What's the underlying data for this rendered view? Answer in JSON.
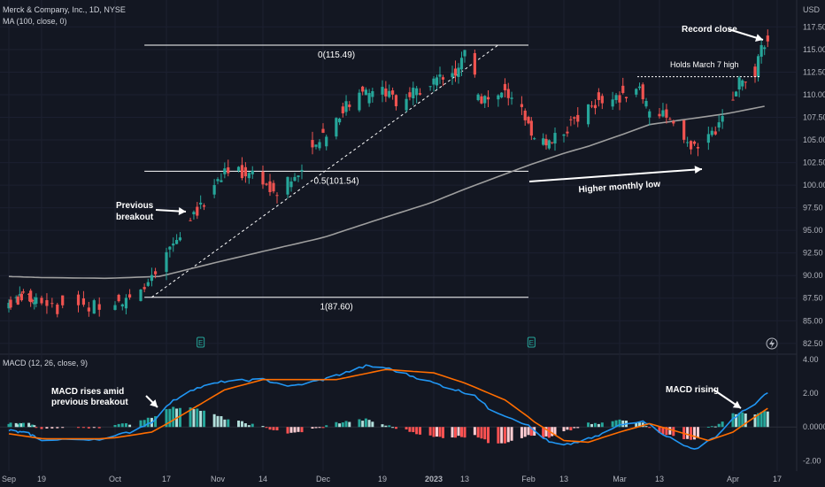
{
  "header": {
    "symbol_line": "Merck & Company, Inc., 1D, NYSE",
    "ma_line": "MA (100, close, 0)",
    "macd_line": "MACD (12, 26, close, 9)",
    "currency": "USD"
  },
  "colors": {
    "background": "#131722",
    "up": "#26a69a",
    "down": "#ef5350",
    "ma": "#9e9e9e",
    "macd": "#2196f3",
    "signal": "#ff6d00",
    "hist_up_strong": "#26a69a",
    "hist_up_weak": "#b2dfdb",
    "hist_down_strong": "#ff5252",
    "hist_down_weak": "#ffcdd2"
  },
  "icons": {
    "earnings_markers": [
      "earnings-e-icon",
      "earnings-e-icon"
    ],
    "lightning": "lightning-icon"
  },
  "chart_data": [
    {
      "type": "candlestick",
      "title": "Merck & Company, Inc., 1D, NYSE",
      "ylabel": "USD",
      "ylim": [
        81.5,
        119.5
      ],
      "y_ticks": [
        "117.50",
        "115.00",
        "112.50",
        "110.00",
        "107.50",
        "105.00",
        "102.50",
        "100.00",
        "97.50",
        "95.00",
        "92.50",
        "90.00",
        "87.50",
        "85.00",
        "82.50"
      ],
      "x_ticks": [
        "Sep",
        "19",
        "Oct",
        "17",
        "Nov",
        "14",
        "Dec",
        "19",
        "2023",
        "13",
        "Feb",
        "13",
        "Mar",
        "13",
        "Apr",
        "17"
      ],
      "x_tick_dates": [
        "2022-09-01",
        "2022-09-19",
        "2022-10-03",
        "2022-10-17",
        "2022-11-01",
        "2022-11-14",
        "2022-12-01",
        "2022-12-19",
        "2023-01-03",
        "2023-01-13",
        "2023-02-01",
        "2023-02-13",
        "2023-03-01",
        "2023-03-13",
        "2023-04-03",
        "2023-04-17"
      ],
      "close_anchors": [
        [
          "2022-09-01",
          87.0
        ],
        [
          "2022-09-12",
          87.6
        ],
        [
          "2022-09-20",
          86.3
        ],
        [
          "2022-09-30",
          86.8
        ],
        [
          "2022-10-07",
          87.8
        ],
        [
          "2022-10-13",
          89.5
        ],
        [
          "2022-10-18",
          93.0
        ],
        [
          "2022-10-24",
          95.8
        ],
        [
          "2022-10-28",
          98.2
        ],
        [
          "2022-11-03",
          101.8
        ],
        [
          "2022-11-08",
          101.3
        ],
        [
          "2022-11-14",
          100.6
        ],
        [
          "2022-11-17",
          98.8
        ],
        [
          "2022-11-23",
          101.3
        ],
        [
          "2022-11-30",
          104.6
        ],
        [
          "2022-12-07",
          108.5
        ],
        [
          "2022-12-14",
          110.2
        ],
        [
          "2022-12-19",
          110.5
        ],
        [
          "2022-12-23",
          109.3
        ],
        [
          "2023-01-03",
          111.5
        ],
        [
          "2023-01-10",
          112.8
        ],
        [
          "2023-01-13",
          114.6
        ],
        [
          "2023-01-18",
          109.5
        ],
        [
          "2023-01-25",
          110.3
        ],
        [
          "2023-01-31",
          107.5
        ],
        [
          "2023-02-02",
          105.0
        ],
        [
          "2023-02-08",
          104.6
        ],
        [
          "2023-02-13",
          106.0
        ],
        [
          "2023-02-22",
          109.0
        ],
        [
          "2023-03-01",
          109.6
        ],
        [
          "2023-03-07",
          111.2
        ],
        [
          "2023-03-10",
          108.0
        ],
        [
          "2023-03-14",
          107.6
        ],
        [
          "2023-03-20",
          105.0
        ],
        [
          "2023-03-24",
          103.8
        ],
        [
          "2023-03-29",
          106.0
        ],
        [
          "2023-04-03",
          109.0
        ],
        [
          "2023-04-05",
          111.8
        ],
        [
          "2023-04-10",
          112.6
        ],
        [
          "2023-04-13",
          115.9
        ]
      ],
      "ma100_anchors": [
        [
          "2022-09-01",
          89.9
        ],
        [
          "2022-10-01",
          89.7
        ],
        [
          "2022-10-15",
          89.9
        ],
        [
          "2022-11-01",
          91.5
        ],
        [
          "2022-12-01",
          94.2
        ],
        [
          "2023-01-01",
          97.9
        ],
        [
          "2023-02-01",
          102.2
        ],
        [
          "2023-02-20",
          104.3
        ],
        [
          "2023-03-10",
          106.7
        ],
        [
          "2023-04-01",
          107.9
        ],
        [
          "2023-04-14",
          108.8
        ]
      ],
      "fib_levels": [
        {
          "ratio": "0",
          "value": 115.49,
          "label": "0(115.49)"
        },
        {
          "ratio": "0.5",
          "value": 101.54,
          "label": "0.5(101.54)"
        },
        {
          "ratio": "1",
          "value": 87.6,
          "label": "1(87.60)"
        }
      ],
      "trendline": [
        [
          "2022-10-13",
          87.6
        ],
        [
          "2023-01-23",
          115.5
        ]
      ],
      "annotations": {
        "record_close": "Record close",
        "holds_march": "Holds March 7 high",
        "holds_march_level": 112.0,
        "previous_breakout_1": "Previous",
        "previous_breakout_2": "breakout",
        "higher_low": "Higher monthly low"
      }
    },
    {
      "type": "line",
      "title": "MACD (12, 26, close, 9)",
      "ylim": [
        -2.5,
        4.2
      ],
      "y_ticks": [
        "4.00",
        "2.00",
        "0.0000",
        "-2.00"
      ],
      "series": [
        {
          "key": "macd",
          "anchors": [
            [
              "2022-09-01",
              -0.2
            ],
            [
              "2022-09-12",
              -0.4
            ],
            [
              "2022-09-20",
              -0.8
            ],
            [
              "2022-09-30",
              -0.7
            ],
            [
              "2022-10-07",
              -0.3
            ],
            [
              "2022-10-13",
              0.3
            ],
            [
              "2022-10-18",
              1.4
            ],
            [
              "2022-10-24",
              2.2
            ],
            [
              "2022-11-03",
              2.7
            ],
            [
              "2022-11-14",
              2.8
            ],
            [
              "2022-11-22",
              2.4
            ],
            [
              "2022-12-01",
              2.8
            ],
            [
              "2022-12-14",
              3.6
            ],
            [
              "2022-12-20",
              3.5
            ],
            [
              "2023-01-03",
              2.6
            ],
            [
              "2023-01-10",
              2.2
            ],
            [
              "2023-01-16",
              1.9
            ],
            [
              "2023-01-20",
              1.1
            ],
            [
              "2023-01-31",
              0.2
            ],
            [
              "2023-02-08",
              -0.9
            ],
            [
              "2023-02-13",
              -1.1
            ],
            [
              "2023-02-22",
              -0.6
            ],
            [
              "2023-03-01",
              0.1
            ],
            [
              "2023-03-08",
              0.4
            ],
            [
              "2023-03-14",
              -0.4
            ],
            [
              "2023-03-20",
              -1.1
            ],
            [
              "2023-03-24",
              -1.3
            ],
            [
              "2023-03-30",
              -0.4
            ],
            [
              "2023-04-03",
              0.5
            ],
            [
              "2023-04-10",
              1.4
            ],
            [
              "2023-04-14",
              2.0
            ]
          ]
        },
        {
          "key": "signal",
          "anchors": [
            [
              "2022-09-01",
              -0.4
            ],
            [
              "2022-09-20",
              -0.7
            ],
            [
              "2022-10-01",
              -0.7
            ],
            [
              "2022-10-13",
              -0.3
            ],
            [
              "2022-10-24",
              1.0
            ],
            [
              "2022-11-03",
              2.2
            ],
            [
              "2022-11-14",
              2.8
            ],
            [
              "2022-11-22",
              2.8
            ],
            [
              "2022-12-05",
              2.8
            ],
            [
              "2022-12-20",
              3.4
            ],
            [
              "2023-01-03",
              3.2
            ],
            [
              "2023-01-13",
              2.6
            ],
            [
              "2023-01-25",
              1.6
            ],
            [
              "2023-02-03",
              0.3
            ],
            [
              "2023-02-13",
              -0.8
            ],
            [
              "2023-02-20",
              -0.9
            ],
            [
              "2023-03-01",
              -0.3
            ],
            [
              "2023-03-10",
              0.2
            ],
            [
              "2023-03-17",
              -0.2
            ],
            [
              "2023-03-27",
              -0.8
            ],
            [
              "2023-04-03",
              -0.3
            ],
            [
              "2023-04-10",
              0.6
            ],
            [
              "2023-04-14",
              1.1
            ]
          ]
        }
      ],
      "annotations": {
        "macd_breakout_1": "MACD rises amid",
        "macd_breakout_2": "previous breakout",
        "macd_rising": "MACD rising"
      }
    }
  ]
}
